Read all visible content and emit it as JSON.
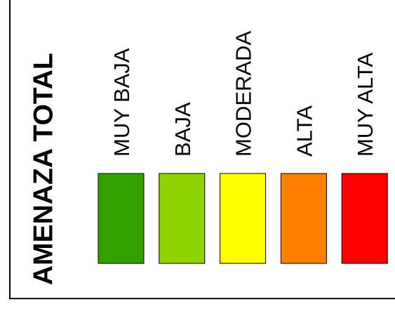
{
  "title": "AMENAZA TOTAL",
  "items": [
    {
      "label": "MUY BAJA",
      "color": "#33a000"
    },
    {
      "label": "BAJA",
      "color": "#8fd300"
    },
    {
      "label": "MODERADA",
      "color": "#ffff00"
    },
    {
      "label": "ALTA",
      "color": "#ff7f00"
    },
    {
      "label": "MUY ALTA",
      "color": "#ff0000"
    }
  ]
}
